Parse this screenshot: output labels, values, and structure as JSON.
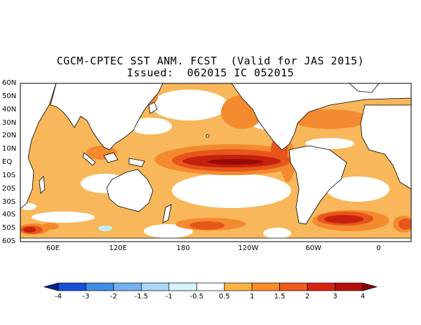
{
  "title": {
    "line1": "CGCM-CPTEC SST ANM. FCST  (Valid for JAS 2015)",
    "line2": "Issued:  062015 IC 052015"
  },
  "lat_labels": [
    "60N",
    "50N",
    "40N",
    "30N",
    "20N",
    "10N",
    "EQ",
    "10S",
    "20S",
    "30S",
    "40S",
    "50S",
    "60S"
  ],
  "lon_labels": [
    "60E",
    "120E",
    "180",
    "120W",
    "60W",
    "0"
  ],
  "colorbar": {
    "labels": [
      "-4",
      "-3",
      "-2",
      "-1.5",
      "-1",
      "-0.5",
      "0.5",
      "1",
      "1.5",
      "2",
      "3",
      "4"
    ],
    "colors": [
      "#0a1f8f",
      "#1750d8",
      "#3f8ee8",
      "#72b2ef",
      "#a8d8f5",
      "#d6f2fb",
      "#ffffff",
      "#ffb347",
      "#ff8a2a",
      "#f25c19",
      "#d8230e",
      "#b40f0a",
      "#8a0505"
    ]
  },
  "colors": {
    "land": "#ffffff",
    "coast": "#000000",
    "anom_1": "#f7b75a",
    "anom_15": "#f48a2f",
    "anom_2": "#e6551b",
    "anom_3": "#c6200f",
    "anom_4": "#990a08",
    "cold_05": "#c7ecf6",
    "cold_1": "#9ed2ef"
  }
}
